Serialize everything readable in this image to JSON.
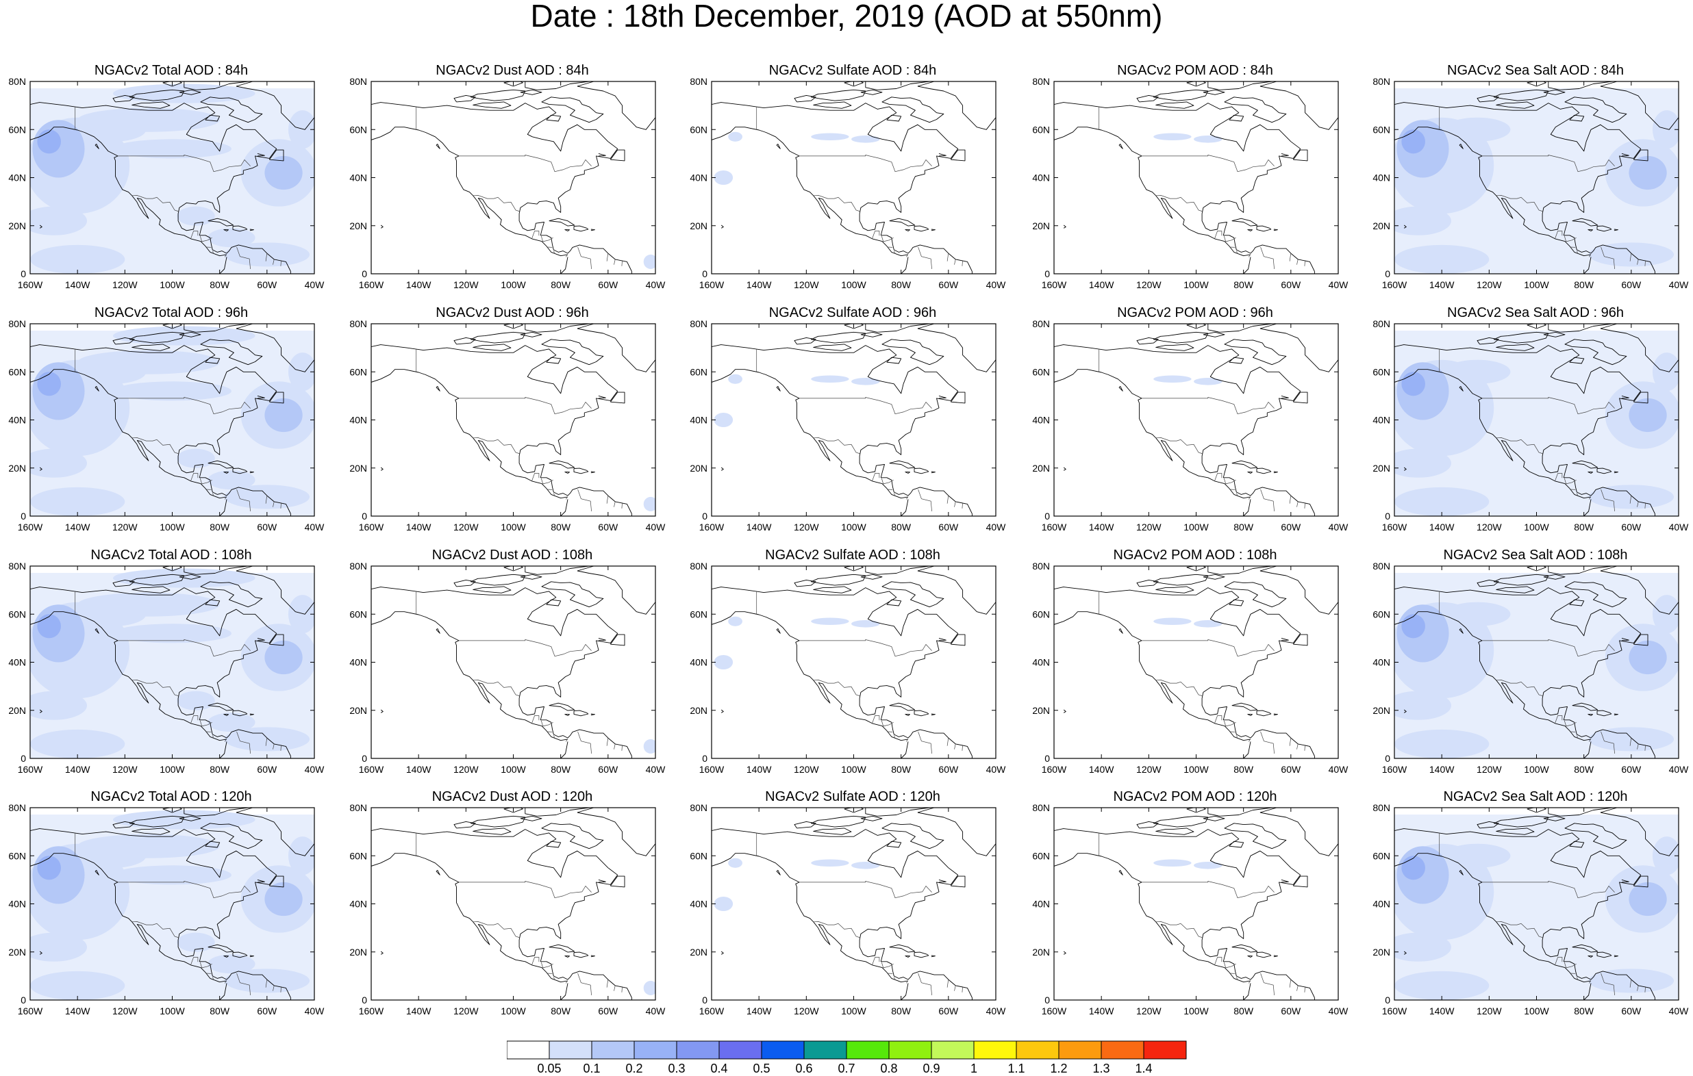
{
  "title": "Date : 18th December, 2019 (AOD at 550nm)",
  "rows": [
    {
      "hour": "84h",
      "panels": [
        {
          "key": "total",
          "title": "NGACv2 Total AOD : 84h"
        },
        {
          "key": "dust",
          "title": "NGACv2 Dust AOD : 84h"
        },
        {
          "key": "sulfate",
          "title": "NGACv2 Sulfate AOD : 84h"
        },
        {
          "key": "pom",
          "title": "NGACv2 POM AOD : 84h"
        },
        {
          "key": "seasalt",
          "title": "NGACv2 Sea Salt AOD : 84h"
        }
      ]
    },
    {
      "hour": "96h",
      "panels": [
        {
          "key": "total",
          "title": "NGACv2 Total AOD : 96h"
        },
        {
          "key": "dust",
          "title": "NGACv2 Dust AOD : 96h"
        },
        {
          "key": "sulfate",
          "title": "NGACv2 Sulfate AOD : 96h"
        },
        {
          "key": "pom",
          "title": "NGACv2 POM AOD : 96h"
        },
        {
          "key": "seasalt",
          "title": "NGACv2 Sea Salt AOD : 96h"
        }
      ]
    },
    {
      "hour": "108h",
      "panels": [
        {
          "key": "total",
          "title": "NGACv2 Total AOD : 108h"
        },
        {
          "key": "dust",
          "title": "NGACv2 Dust AOD : 108h"
        },
        {
          "key": "sulfate",
          "title": "NGACv2 Sulfate AOD : 108h"
        },
        {
          "key": "pom",
          "title": "NGACv2 POM AOD : 108h"
        },
        {
          "key": "seasalt",
          "title": "NGACv2 Sea Salt AOD : 108h"
        }
      ]
    },
    {
      "hour": "120h",
      "panels": [
        {
          "key": "total",
          "title": "NGACv2 Total AOD : 120h"
        },
        {
          "key": "dust",
          "title": "NGACv2 Dust AOD : 120h"
        },
        {
          "key": "sulfate",
          "title": "NGACv2 Sulfate AOD : 120h"
        },
        {
          "key": "pom",
          "title": "NGACv2 POM AOD : 120h"
        },
        {
          "key": "seasalt",
          "title": "NGACv2 Sea Salt  AOD : 120h"
        }
      ]
    }
  ],
  "x_ticks": [
    "160W",
    "140W",
    "120W",
    "100W",
    "80W",
    "60W",
    "40W"
  ],
  "y_ticks": [
    "0",
    "20N",
    "40N",
    "60N",
    "80N"
  ],
  "lon_range": [
    -160,
    -40
  ],
  "lat_range": [
    0,
    80
  ],
  "colorbar": {
    "labels": [
      "0.05",
      "0.1",
      "0.2",
      "0.3",
      "0.4",
      "0.5",
      "0.6",
      "0.7",
      "0.8",
      "0.9",
      "1",
      "1.1",
      "1.2",
      "1.3",
      "1.4"
    ],
    "colors": [
      "#ffffff",
      "#d4e0fa",
      "#b4c8f7",
      "#98b2f6",
      "#8398f2",
      "#6a6ef0",
      "#0b5cf0",
      "#0b9a93",
      "#56e80b",
      "#90f010",
      "#c3f85a",
      "#fff70b",
      "#fdc80d",
      "#fc9b0f",
      "#fa6a13",
      "#f5250f"
    ]
  },
  "map_colors": {
    "coastline": "#000000",
    "border": "#444444",
    "aod_light": "#d4e0fa",
    "aod_medium": "#b4c8f7",
    "aod_strong": "#98b2f6",
    "aod_peak": "#56e80b"
  },
  "field_levels": {
    "total": {
      "base": 0.1,
      "plumes": [
        "pacific-swirl",
        "atlantic-plume",
        "canada-band",
        "tropics-band",
        "gulf-band"
      ]
    },
    "dust": {
      "base": 0.0,
      "plumes": [
        "atlantic-patch"
      ]
    },
    "sulfate": {
      "base": 0.0,
      "plumes": [
        "pacific-patch",
        "canada-streak"
      ]
    },
    "pom": {
      "base": 0.0,
      "plumes": [
        "canada-streak"
      ]
    },
    "seasalt": {
      "base": 0.1,
      "plumes": [
        "pacific-swirl",
        "atlantic-plume",
        "tropics-band"
      ]
    }
  }
}
